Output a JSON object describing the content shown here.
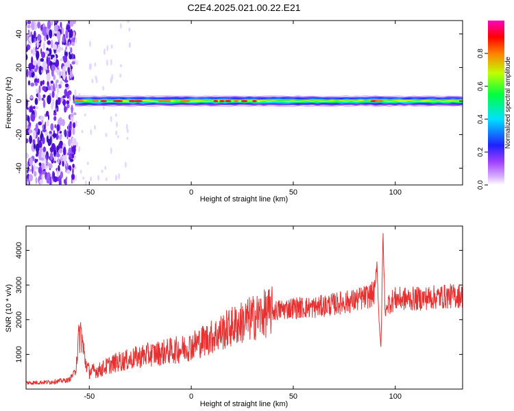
{
  "title": "C2E4.2025.021.00.22.E21",
  "chart_data": [
    {
      "type": "heatmap",
      "xlabel": "Height of straight line (km)",
      "ylabel": "Frequency (Hz)",
      "xlim": [
        -81,
        133
      ],
      "ylim": [
        -50,
        48
      ],
      "xticks": [
        -50,
        0,
        50,
        100
      ],
      "yticks": [
        -40,
        -20,
        0,
        20,
        40
      ],
      "colorbar": {
        "label": "Normalized spectral amplitude",
        "range": [
          0,
          1
        ],
        "ticks": [
          "0.0",
          "0.2",
          "0.4",
          "0.6",
          "0.8"
        ],
        "colors": [
          "#ffffff",
          "#a040ff",
          "#2020ff",
          "#00e0ff",
          "#00ff40",
          "#c0ff00",
          "#ff8000",
          "#ff0000",
          "#ff00c0"
        ]
      },
      "features": {
        "noise_region_x": [
          -81,
          -57
        ],
        "band_center_hz": 0,
        "band_start_x": -57,
        "band_end_x": 133
      }
    },
    {
      "type": "line",
      "xlabel": "Height of straight line (km)",
      "ylabel": "SNR (10 * v/v)",
      "xlim": [
        -81,
        133
      ],
      "ylim": [
        0,
        4700
      ],
      "xticks": [
        -50,
        0,
        50,
        100
      ],
      "yticks": [
        1000,
        2000,
        3000,
        4000
      ],
      "series": [
        {
          "color": "#e83030",
          "x": [
            -81,
            -70,
            -60,
            -57,
            -55,
            -54,
            -53,
            -52,
            -50,
            -45,
            -40,
            -35,
            -30,
            -25,
            -20,
            -15,
            -10,
            -5,
            0,
            10,
            20,
            30,
            40,
            50,
            60,
            70,
            80,
            88,
            90,
            91,
            92,
            93,
            94,
            95,
            96,
            100,
            110,
            120,
            133
          ],
          "y": [
            180,
            200,
            260,
            500,
            1500,
            1650,
            1200,
            800,
            500,
            550,
            700,
            800,
            850,
            950,
            1000,
            1050,
            1100,
            1150,
            1250,
            1500,
            1800,
            2050,
            2250,
            2350,
            2350,
            2450,
            2550,
            2700,
            2800,
            3700,
            2000,
            1200,
            4500,
            2100,
            2450,
            2600,
            2600,
            2650,
            2700
          ]
        }
      ]
    }
  ]
}
